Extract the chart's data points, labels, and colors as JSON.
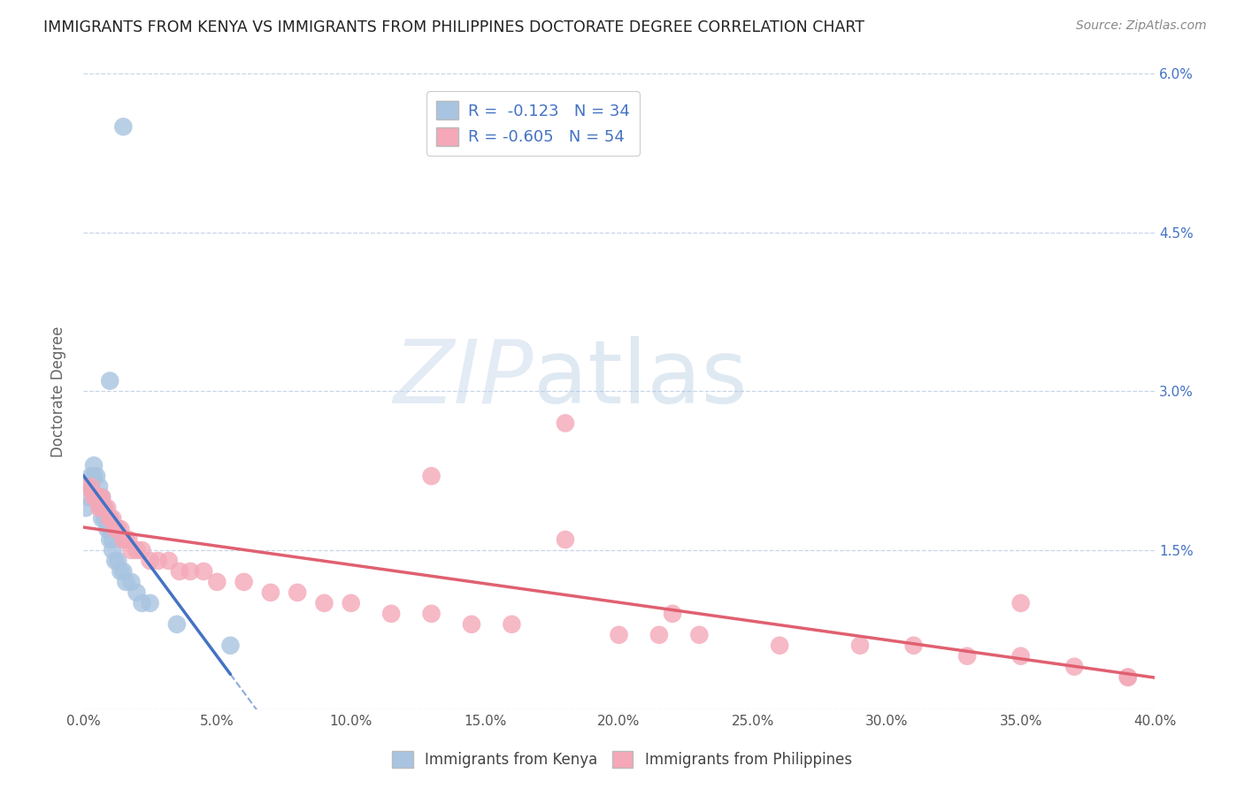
{
  "title": "IMMIGRANTS FROM KENYA VS IMMIGRANTS FROM PHILIPPINES DOCTORATE DEGREE CORRELATION CHART",
  "source": "Source: ZipAtlas.com",
  "ylabel": "Doctorate Degree",
  "xlim": [
    0.0,
    0.4
  ],
  "ylim": [
    0.0,
    0.06
  ],
  "xticks": [
    0.0,
    0.05,
    0.1,
    0.15,
    0.2,
    0.25,
    0.3,
    0.35,
    0.4
  ],
  "yticks": [
    0.0,
    0.015,
    0.03,
    0.045,
    0.06
  ],
  "ytick_labels": [
    "",
    "1.5%",
    "3.0%",
    "4.5%",
    "6.0%"
  ],
  "xtick_labels": [
    "0.0%",
    "5.0%",
    "10.0%",
    "15.0%",
    "20.0%",
    "25.0%",
    "30.0%",
    "35.0%",
    "40.0%"
  ],
  "kenya_R": -0.123,
  "kenya_N": 34,
  "philippines_R": -0.605,
  "philippines_N": 54,
  "kenya_color": "#a8c4e0",
  "philippines_color": "#f4a8b8",
  "kenya_line_color": "#4472c4",
  "philippines_line_color": "#e06070",
  "background_color": "#ffffff",
  "grid_color": "#c8d4e8",
  "watermark_zip": "ZIP",
  "watermark_atlas": "atlas",
  "legend_label_kenya": "Immigrants from Kenya",
  "legend_label_philippines": "Immigrants from Philippines",
  "kenya_x": [
    0.001,
    0.002,
    0.003,
    0.003,
    0.004,
    0.004,
    0.005,
    0.005,
    0.006,
    0.006,
    0.007,
    0.007,
    0.007,
    0.008,
    0.008,
    0.009,
    0.009,
    0.01,
    0.01,
    0.011,
    0.011,
    0.012,
    0.013,
    0.014,
    0.015,
    0.016,
    0.018,
    0.02,
    0.022,
    0.025,
    0.035,
    0.055,
    0.01,
    0.015
  ],
  "kenya_y": [
    0.019,
    0.02,
    0.022,
    0.021,
    0.023,
    0.022,
    0.022,
    0.02,
    0.021,
    0.02,
    0.02,
    0.019,
    0.018,
    0.019,
    0.018,
    0.018,
    0.017,
    0.017,
    0.016,
    0.016,
    0.015,
    0.014,
    0.014,
    0.013,
    0.013,
    0.012,
    0.012,
    0.011,
    0.01,
    0.01,
    0.008,
    0.006,
    0.031,
    0.055
  ],
  "philippines_x": [
    0.001,
    0.003,
    0.004,
    0.005,
    0.006,
    0.006,
    0.007,
    0.007,
    0.008,
    0.009,
    0.01,
    0.01,
    0.011,
    0.012,
    0.013,
    0.014,
    0.015,
    0.016,
    0.017,
    0.018,
    0.02,
    0.022,
    0.025,
    0.028,
    0.032,
    0.036,
    0.04,
    0.045,
    0.05,
    0.06,
    0.07,
    0.08,
    0.09,
    0.1,
    0.115,
    0.13,
    0.145,
    0.16,
    0.18,
    0.2,
    0.215,
    0.23,
    0.26,
    0.29,
    0.31,
    0.33,
    0.35,
    0.37,
    0.39,
    0.18,
    0.22,
    0.13,
    0.35,
    0.39
  ],
  "philippines_y": [
    0.021,
    0.021,
    0.02,
    0.02,
    0.02,
    0.019,
    0.02,
    0.019,
    0.019,
    0.019,
    0.018,
    0.018,
    0.018,
    0.017,
    0.017,
    0.017,
    0.016,
    0.016,
    0.016,
    0.015,
    0.015,
    0.015,
    0.014,
    0.014,
    0.014,
    0.013,
    0.013,
    0.013,
    0.012,
    0.012,
    0.011,
    0.011,
    0.01,
    0.01,
    0.009,
    0.009,
    0.008,
    0.008,
    0.027,
    0.007,
    0.007,
    0.007,
    0.006,
    0.006,
    0.006,
    0.005,
    0.005,
    0.004,
    0.003,
    0.016,
    0.009,
    0.022,
    0.01,
    0.003
  ]
}
